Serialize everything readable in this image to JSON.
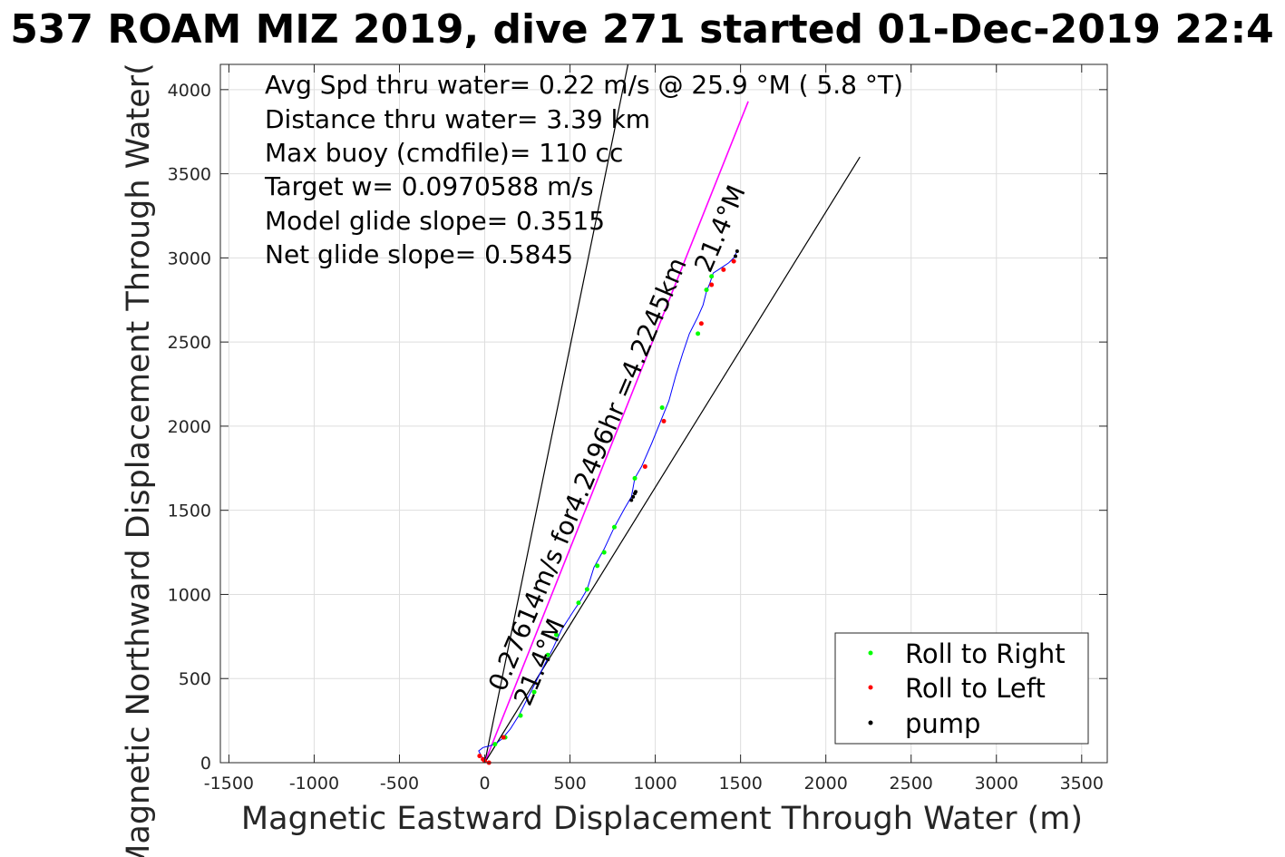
{
  "chart_data": {
    "type": "scatter",
    "title": "537 ROAM MIZ 2019, dive 271 started 01-Dec-2019 22:4",
    "xlabel": "Magnetic Eastward Displacement Through Water (m)",
    "ylabel": "Magnetic Northward Displacement Through Water(",
    "xlim": [
      -1550,
      3650
    ],
    "ylim": [
      0,
      4150
    ],
    "x_ticks": [
      -1500,
      -1000,
      -500,
      0,
      500,
      1000,
      1500,
      2000,
      2500,
      3000,
      3500
    ],
    "x_tick_labels": [
      "-1500",
      "-1000",
      "-500",
      "0",
      "500",
      "1000",
      "1500",
      "2000",
      "2500",
      "3000",
      "3500"
    ],
    "y_ticks": [
      0,
      500,
      1000,
      1500,
      2000,
      2500,
      3000,
      3500,
      4000
    ],
    "y_tick_labels": [
      "0",
      "500",
      "1000",
      "1500",
      "2000",
      "2500",
      "3000",
      "3500",
      "4000"
    ],
    "grid": true,
    "colors": {
      "track": "#0000ff",
      "right": "#00ff00",
      "left": "#ff0000",
      "pump": "#000000",
      "model": "#ff00ff",
      "guide": "#000000"
    },
    "info_lines": [
      "Avg Spd thru water=  0.22 m/s @  25.9 °M (  5.8 °T)",
      "Distance thru water=  3.39 km",
      "Max buoy (cmdfile)= 110 cc",
      "Target w= 0.0970588 m/s",
      "Model glide slope= 0.3515",
      "Net glide slope= 0.5845"
    ],
    "line_annotations": {
      "model_line": "0.27614m/s for4.2496hr =4.2245km",
      "angle_upper": "21.4°M",
      "angle_lower": "21.4°M"
    },
    "guide_lines": [
      {
        "name": "steep",
        "x": [
          0,
          840
        ],
        "y": [
          0,
          4150
        ]
      },
      {
        "name": "model",
        "x": [
          0,
          1545
        ],
        "y": [
          0,
          3930
        ]
      },
      {
        "name": "shallow",
        "x": [
          0,
          2200
        ],
        "y": [
          0,
          3600
        ]
      }
    ],
    "track": {
      "x": [
        0,
        -20,
        -35,
        -10,
        30,
        60,
        100,
        150,
        200,
        250,
        300,
        350,
        400,
        450,
        520,
        560,
        600,
        640,
        700,
        760,
        820,
        860,
        880,
        920,
        980,
        1040,
        1080,
        1120,
        1160,
        1200,
        1250,
        1280,
        1300,
        1320,
        1340,
        1370,
        1400,
        1430,
        1460,
        1475
      ],
      "y": [
        0,
        40,
        70,
        90,
        100,
        110,
        140,
        200,
        280,
        380,
        480,
        580,
        680,
        790,
        900,
        960,
        1030,
        1160,
        1270,
        1400,
        1510,
        1580,
        1690,
        1760,
        1900,
        2050,
        2150,
        2300,
        2430,
        2550,
        2650,
        2720,
        2800,
        2850,
        2910,
        2930,
        2950,
        2970,
        3000,
        3030
      ]
    },
    "series": [
      {
        "name": "Roll to Right",
        "x": [
          60,
          120,
          210,
          290,
          370,
          420,
          550,
          600,
          660,
          700,
          760,
          880,
          1040,
          1250,
          1300,
          1330
        ],
        "y": [
          110,
          150,
          280,
          420,
          640,
          760,
          950,
          1030,
          1170,
          1250,
          1400,
          1690,
          2110,
          2550,
          2810,
          2890
        ]
      },
      {
        "name": "Roll to Left",
        "x": [
          -30,
          -10,
          0,
          25,
          110,
          940,
          1050,
          1270,
          1330,
          1400,
          1460
        ],
        "y": [
          40,
          20,
          10,
          0,
          150,
          1760,
          2030,
          2610,
          2840,
          2930,
          2980
        ]
      },
      {
        "name": "pump",
        "x": [
          860,
          870,
          880,
          885,
          1470,
          1480
        ],
        "y": [
          1560,
          1580,
          1600,
          1610,
          3010,
          3040
        ]
      }
    ],
    "legend_position": "bottom-right"
  }
}
